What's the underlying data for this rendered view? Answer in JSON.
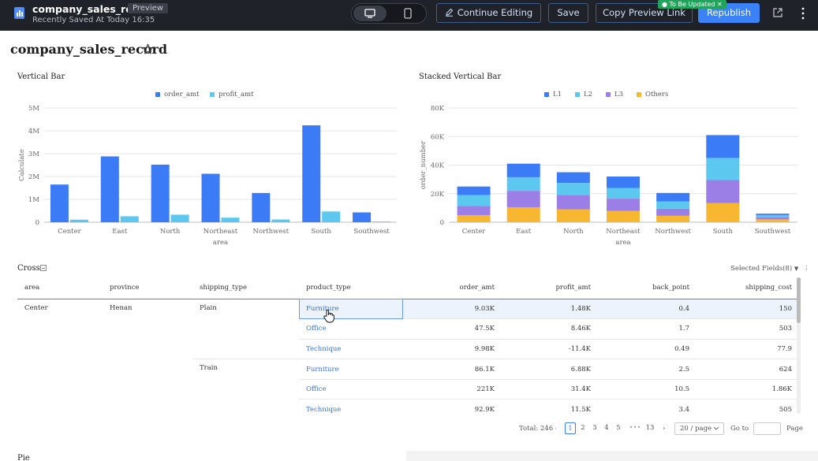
{
  "topbar": {
    "doc_title": "company_sales_rec...",
    "preview_tag": "Preview",
    "saved_text": "Recently Saved At Today 16:35",
    "continue_editing": "Continue Editing",
    "save": "Save",
    "copy_preview_link": "Copy Preview Link",
    "update_badge": "To Be Updated",
    "republish": "Republish"
  },
  "page": {
    "title": "company_sales_record"
  },
  "vertical_bar": {
    "title": "Vertical Bar",
    "colors": [
      "#3b7cf6",
      "#5cc8f0"
    ],
    "chart_data": {
      "type": "bar",
      "categories": [
        "Center",
        "East",
        "North",
        "Northeast",
        "Northwest",
        "South",
        "Southwest"
      ],
      "series": [
        {
          "name": "order_amt",
          "values": [
            1650000,
            2880000,
            2520000,
            2120000,
            1280000,
            4240000,
            430000
          ]
        },
        {
          "name": "profit_amt",
          "values": [
            110000,
            260000,
            330000,
            200000,
            120000,
            470000,
            30000
          ]
        }
      ],
      "xlabel": "area",
      "ylabel": "Calculate",
      "ylim": [
        0,
        5000000
      ],
      "yticks": [
        "0",
        "1M",
        "2M",
        "3M",
        "4M",
        "5M"
      ]
    }
  },
  "stacked_bar": {
    "title": "Stacked Vertical Bar",
    "colors": [
      "#f7b731",
      "#9b7fe6",
      "#5cc8f0",
      "#3b7cf6"
    ],
    "chart_data": {
      "type": "bar",
      "stacked": true,
      "categories": [
        "Center",
        "East",
        "North",
        "Northeast",
        "Northwest",
        "South",
        "Southwest"
      ],
      "series": [
        {
          "name": "Others",
          "values": [
            5000,
            10500,
            9000,
            8000,
            4500,
            13500,
            2000
          ]
        },
        {
          "name": "L3",
          "values": [
            6500,
            11500,
            10000,
            8500,
            5000,
            16000,
            1500
          ]
        },
        {
          "name": "L2",
          "values": [
            7500,
            9500,
            8500,
            7500,
            5000,
            15500,
            1500
          ]
        },
        {
          "name": "L1",
          "values": [
            6000,
            9500,
            7500,
            8000,
            6000,
            16000,
            1000
          ]
        }
      ],
      "legend_order": [
        "L1",
        "L2",
        "L3",
        "Others"
      ],
      "xlabel": "area",
      "ylabel": "order_number",
      "ylim": [
        0,
        80000
      ],
      "yticks": [
        "0",
        "20K",
        "40K",
        "60K",
        "80K"
      ]
    }
  },
  "cross": {
    "title": "Cross",
    "selected_fields": "Selected Fields(8)",
    "columns": [
      "area",
      "province",
      "shipping_type",
      "product_type",
      "order_amt",
      "profit_amt",
      "back_point",
      "shipping_cost"
    ],
    "area": "Center",
    "province": "Henan",
    "groups": [
      {
        "shipping_type": "Plain",
        "rows": [
          [
            "Furniture",
            "9.03K",
            "1.48K",
            "0.4",
            "150"
          ],
          [
            "Office",
            "47.5K",
            "8.46K",
            "1.7",
            "503"
          ],
          [
            "Technique",
            "9.98K",
            "-11.4K",
            "0.49",
            "77.9"
          ]
        ]
      },
      {
        "shipping_type": "Train",
        "rows": [
          [
            "Furniture",
            "86.1K",
            "6.88K",
            "2.5",
            "624"
          ],
          [
            "Office",
            "221K",
            "31.4K",
            "10.5",
            "1.86K"
          ],
          [
            "Technique",
            "92.9K",
            "11.5K",
            "3.4",
            "505"
          ]
        ]
      }
    ]
  },
  "pagination": {
    "total": "Total: 246",
    "pages": [
      "1",
      "2",
      "3",
      "4",
      "5"
    ],
    "ellipsis": "•••",
    "last": "13",
    "page_size": "20 / page",
    "goto_label": "Go to",
    "page_label": "Page"
  },
  "bottom": {
    "title": "Pie"
  }
}
